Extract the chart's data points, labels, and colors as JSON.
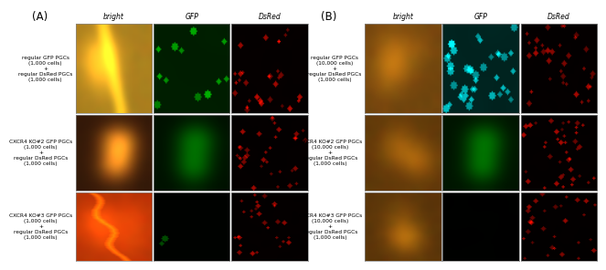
{
  "fig_width": 6.21,
  "fig_height": 2.82,
  "bg_color": "#ffffff",
  "col_headers": [
    "bright",
    "GFP",
    "DsRed"
  ],
  "A_row_labels": [
    "regular GFP PGCs\n(1,000 cells)\n+\nregular DsRed PGCs\n(1,000 cells)",
    "CXCR4 KO#2 GFP PGCs\n(1,000 cells)\n+\nregular DsRed PGCs\n(1,000 cells)",
    "CXCR4 KO#3 GFP PGCs\n(1,000 cells)\n+\nregular DsRed PGCs\n(1,000 cells)"
  ],
  "B_row_labels": [
    "regular GFP PGCs\n(10,000 cells)\n+\nregular DsRed PGCs\n(1,000 cells)",
    "CXCR4 KO#2 GFP PGCs\n(10,000 cells)\n+\nregular DsRed PGCs\n(1,000 cells)",
    "CXCR4 KO#3 GFP PGCs\n(10,000 cells)\n+\nregular DsRed PGCs\n(1,000 cells)"
  ],
  "label_fontsize": 4.2,
  "header_fontsize": 5.5,
  "panel_label_fontsize": 8.5,
  "spine_color": "#888888",
  "A_bright_params": [
    {
      "base_r": 160,
      "base_g": 130,
      "base_b": 30,
      "style": "yellowish"
    },
    {
      "base_r": 140,
      "base_g": 80,
      "base_b": 25,
      "style": "orange_gonad"
    },
    {
      "base_r": 160,
      "base_g": 70,
      "base_b": 15,
      "style": "red_orange"
    }
  ],
  "B_bright_params": [
    {
      "base_r": 120,
      "base_g": 80,
      "base_b": 25,
      "style": "brown"
    },
    {
      "base_r": 110,
      "base_g": 72,
      "base_b": 20,
      "style": "brown_dark"
    },
    {
      "base_r": 100,
      "base_g": 65,
      "base_b": 18,
      "style": "brown_dark"
    }
  ],
  "A_gfp_params": [
    {
      "has_signal": true,
      "color": "green",
      "n_spots": 12,
      "spot_intensity": 150,
      "bg_level": 60
    },
    {
      "has_signal": true,
      "color": "green",
      "n_spots": 0,
      "spot_intensity": 0,
      "bg_level": 35
    },
    {
      "has_signal": false,
      "color": "green",
      "n_spots": 2,
      "spot_intensity": 80,
      "bg_level": 5
    }
  ],
  "B_gfp_params": [
    {
      "has_signal": true,
      "color": "cyan",
      "n_spots": 40,
      "spot_intensity": 180,
      "bg_level": 80
    },
    {
      "has_signal": true,
      "color": "green",
      "n_spots": 0,
      "spot_intensity": 0,
      "bg_level": 40
    },
    {
      "has_signal": false,
      "color": "green",
      "n_spots": 0,
      "spot_intensity": 0,
      "bg_level": 2
    }
  ],
  "A_dsred_params": [
    {
      "n_spots": 30,
      "intensity": 180,
      "bg": 10
    },
    {
      "n_spots": 35,
      "intensity": 160,
      "bg": 8
    },
    {
      "n_spots": 28,
      "intensity": 170,
      "bg": 8
    }
  ],
  "B_dsred_params": [
    {
      "n_spots": 35,
      "intensity": 160,
      "bg": 8
    },
    {
      "n_spots": 40,
      "intensity": 170,
      "bg": 8
    },
    {
      "n_spots": 30,
      "intensity": 150,
      "bg": 6
    }
  ]
}
